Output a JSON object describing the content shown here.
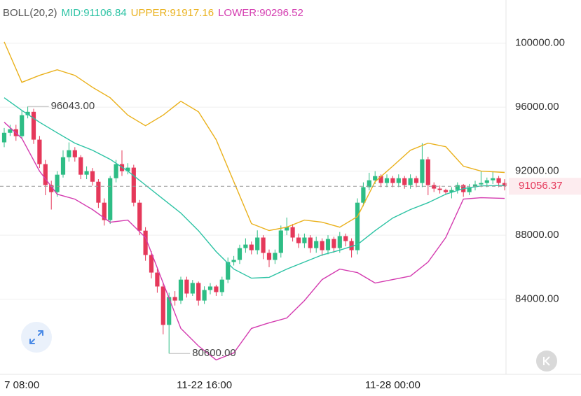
{
  "chart_data": {
    "type": "candlestick",
    "indicator": "BOLL(20,2)",
    "categories": [
      null,
      null,
      null,
      "7 08:00",
      null,
      null,
      null,
      null,
      null,
      null,
      null,
      null,
      null,
      null,
      null,
      null,
      null,
      null,
      null,
      null,
      null,
      null,
      null,
      null,
      null,
      null,
      null,
      null,
      null,
      null,
      null,
      null,
      null,
      null,
      "11-22 16:00",
      null,
      null,
      null,
      null,
      null,
      null,
      null,
      null,
      null,
      null,
      null,
      null,
      null,
      null,
      null,
      null,
      null,
      null,
      null,
      null,
      null,
      null,
      null,
      null,
      null,
      null,
      null,
      null,
      null,
      null,
      null,
      "11-28 00:00",
      null,
      null,
      null,
      null,
      null,
      null,
      null,
      null,
      null,
      null,
      null,
      null,
      null,
      null,
      null,
      null,
      null,
      null,
      null
    ],
    "open": [
      93800,
      94400,
      94620,
      94190,
      95500,
      95710,
      93970,
      92440,
      91130,
      90690,
      91780,
      92870,
      93310,
      92870,
      91780,
      92000,
      91340,
      90030,
      88940,
      91560,
      92440,
      92000,
      92220,
      90030,
      88280,
      86760,
      85660,
      84790,
      82390,
      84130,
      83910,
      85220,
      84350,
      85010,
      83910,
      84570,
      84790,
      84440,
      85220,
      86320,
      86450,
      87190,
      87410,
      87060,
      87850,
      86890,
      86450,
      86890,
      88290,
      88500,
      87850,
      87500,
      87850,
      87190,
      87630,
      87060,
      87760,
      87190,
      87940,
      87630,
      87060,
      90030,
      91000,
      91430,
      91690,
      91260,
      91560,
      91260,
      91560,
      91130,
      91560,
      91260,
      92740,
      91130,
      90910,
      90820,
      90690,
      90820,
      91130,
      90690,
      91000,
      91170,
      91260,
      91430,
      91560,
      91260
    ],
    "high": [
      94700,
      94900,
      94900,
      95800,
      96043,
      95900,
      94200,
      92700,
      91400,
      92000,
      93300,
      93800,
      93500,
      93000,
      92300,
      92200,
      91500,
      90300,
      91700,
      92700,
      93300,
      92500,
      92400,
      90200,
      88500,
      87000,
      85900,
      85000,
      84400,
      84500,
      85400,
      85400,
      85200,
      85100,
      84800,
      85000,
      84900,
      85400,
      86600,
      86700,
      87400,
      87800,
      87600,
      88300,
      88000,
      87100,
      87100,
      88600,
      89100,
      88700,
      88100,
      88100,
      88000,
      87900,
      87800,
      88000,
      87900,
      88200,
      88100,
      87800,
      90300,
      91300,
      91900,
      92000,
      91800,
      91800,
      91700,
      91800,
      91700,
      91800,
      91700,
      93750,
      92900,
      91300,
      91100,
      90900,
      91000,
      91300,
      91200,
      91200,
      91400,
      92000,
      91600,
      92000,
      91700,
      91500
    ],
    "low": [
      93500,
      94200,
      93900,
      94000,
      95300,
      93700,
      92200,
      90500,
      89600,
      90400,
      91600,
      92600,
      92600,
      91500,
      91500,
      91100,
      89700,
      88600,
      88700,
      91300,
      91700,
      91800,
      89800,
      88000,
      86400,
      85300,
      84400,
      81800,
      80600,
      83600,
      83700,
      84100,
      84200,
      83600,
      83700,
      84300,
      84200,
      84200,
      85000,
      86100,
      86200,
      86900,
      86800,
      86800,
      86500,
      86000,
      86200,
      86600,
      88000,
      87600,
      87200,
      87200,
      86900,
      86900,
      86700,
      86800,
      86900,
      86900,
      87300,
      86600,
      86800,
      89800,
      90800,
      91200,
      91000,
      91000,
      91000,
      91000,
      90900,
      90900,
      91000,
      91000,
      90500,
      90700,
      90600,
      90500,
      90300,
      90600,
      90400,
      90500,
      90800,
      91000,
      91000,
      91200,
      91000,
      90800
    ],
    "close": [
      94400,
      94620,
      94190,
      95500,
      95710,
      93970,
      92440,
      91130,
      90690,
      91780,
      92870,
      93310,
      92870,
      91780,
      92000,
      91340,
      90030,
      88940,
      91560,
      92440,
      92000,
      92220,
      90030,
      88280,
      86760,
      85660,
      84790,
      82390,
      84130,
      83910,
      85220,
      84350,
      85010,
      83910,
      84570,
      84790,
      84440,
      85220,
      86320,
      86450,
      87190,
      87410,
      87060,
      87850,
      86890,
      86450,
      86890,
      88290,
      88500,
      87850,
      87500,
      87850,
      87190,
      87630,
      87060,
      87760,
      87190,
      87940,
      87630,
      87060,
      90030,
      91000,
      91430,
      91690,
      91260,
      91560,
      91260,
      91560,
      91130,
      91560,
      91260,
      92740,
      91130,
      90910,
      90820,
      90690,
      90820,
      91130,
      90690,
      91000,
      91170,
      91260,
      91430,
      91560,
      91260,
      91056.37
    ],
    "up_color": "#2ebd85",
    "down_color": "#e5385a",
    "series": [
      {
        "name": "MID:91106.84",
        "color": "#2cc3a4",
        "x": [
          0,
          3,
          6,
          9,
          12,
          15,
          18,
          21,
          24,
          27,
          30,
          33,
          36,
          39,
          42,
          45,
          48,
          51,
          54,
          57,
          60,
          63,
          66,
          69,
          72,
          75,
          78,
          81,
          85
        ],
        "values": [
          96590,
          95800,
          95060,
          94400,
          93750,
          93310,
          92740,
          92000,
          91130,
          90250,
          89380,
          88280,
          86970,
          85880,
          85310,
          85360,
          85880,
          86320,
          86760,
          87060,
          87410,
          88280,
          89070,
          89600,
          90030,
          90560,
          90910,
          91080,
          91106.84
        ]
      },
      {
        "name": "UPPER:91917.16",
        "color": "#eab11c",
        "x": [
          0,
          3,
          6,
          9,
          12,
          15,
          18,
          21,
          24,
          27,
          30,
          33,
          36,
          39,
          42,
          45,
          48,
          51,
          54,
          57,
          60,
          63,
          66,
          69,
          72,
          75,
          78,
          81,
          85
        ],
        "values": [
          100080,
          97550,
          97990,
          98340,
          97990,
          97240,
          96590,
          95500,
          94840,
          95500,
          96370,
          95710,
          93970,
          91340,
          88720,
          88290,
          88500,
          88940,
          88810,
          88500,
          89160,
          91340,
          92310,
          93310,
          93750,
          93530,
          92310,
          92000,
          91917.16
        ]
      },
      {
        "name": "LOWER:90296.52",
        "color": "#d43cb0",
        "x": [
          0,
          3,
          6,
          9,
          12,
          15,
          18,
          21,
          24,
          27,
          30,
          33,
          36,
          39,
          42,
          45,
          48,
          51,
          54,
          57,
          60,
          63,
          66,
          69,
          72,
          75,
          78,
          81,
          85
        ],
        "values": [
          95060,
          94050,
          92000,
          90560,
          90250,
          89600,
          88810,
          88940,
          87850,
          85010,
          82170,
          81070,
          80200,
          80640,
          82170,
          82520,
          82820,
          83910,
          85220,
          85880,
          85660,
          85010,
          85220,
          85440,
          86320,
          87850,
          90250,
          90340,
          90296.52
        ]
      }
    ],
    "ylim": [
      79300,
      102700
    ],
    "yticks": [
      {
        "value": 84000,
        "label": "84000.00"
      },
      {
        "value": 88000,
        "label": "88000.00"
      },
      {
        "value": 92000,
        "label": "92000.00"
      },
      {
        "value": 96000,
        "label": "96000.00"
      },
      {
        "value": 100000,
        "label": "100000.00"
      }
    ],
    "grid": true,
    "last_price": 91056.37,
    "annotations": [
      {
        "index": 4,
        "value": 96043,
        "label": "96043.00"
      },
      {
        "index": 28,
        "value": 80600,
        "label": "80600.00"
      }
    ]
  }
}
